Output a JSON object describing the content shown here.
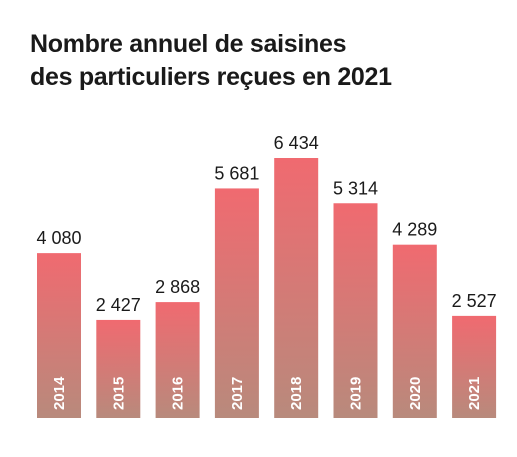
{
  "title_lines": [
    "Nombre annuel de saisines",
    "des particuliers reçues en 2021"
  ],
  "chart_data": {
    "type": "bar",
    "title": "Nombre annuel de saisines des particuliers reçues en 2021",
    "categories": [
      "2014",
      "2015",
      "2016",
      "2017",
      "2018",
      "2019",
      "2020",
      "2021"
    ],
    "values": [
      4080,
      2427,
      2868,
      5681,
      6434,
      5314,
      4289,
      2527
    ],
    "value_labels": [
      "4 080",
      "2 427",
      "2 868",
      "5 681",
      "6 434",
      "5 314",
      "4 289",
      "2 527"
    ],
    "colors": {
      "bar_top": "#f06a70",
      "bar_bottom": "#b88a7c"
    },
    "grid": false,
    "legend": "none"
  }
}
